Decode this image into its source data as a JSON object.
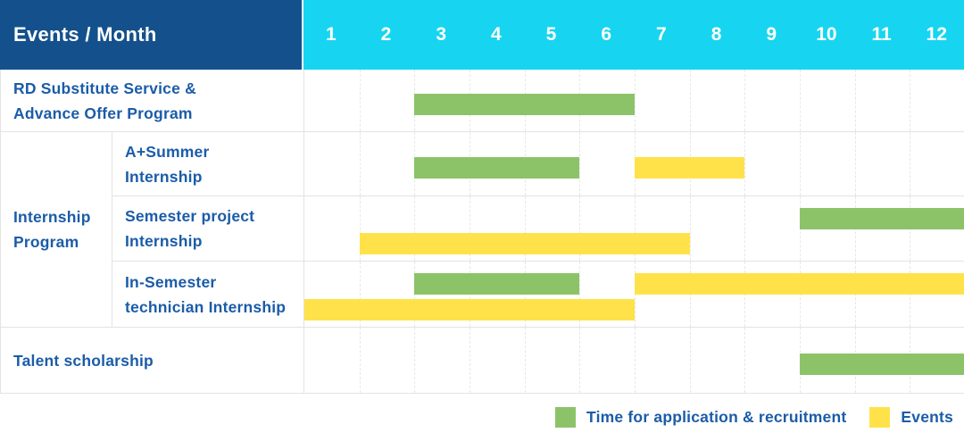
{
  "header": {
    "title": "Events / Month",
    "months": [
      "1",
      "2",
      "3",
      "4",
      "5",
      "6",
      "7",
      "8",
      "9",
      "10",
      "11",
      "12"
    ]
  },
  "legend": [
    {
      "label": "Time for application & recruitment",
      "type": "application"
    },
    {
      "label": "Events",
      "type": "event"
    }
  ],
  "colors": {
    "header_bg": "#14518C",
    "months_bg": "#17D5F0",
    "label_text": "#1B5CA8",
    "green": "#8CC369",
    "yellow": "#FFE249",
    "grid_line": "#E7E7E7",
    "cell_border": "#E3E3E3"
  },
  "chart_data": {
    "type": "gantt",
    "x_axis": {
      "unit": "month",
      "range": [
        1,
        12
      ]
    },
    "bar_types": {
      "application": "Time for application & recruitment",
      "event": "Events"
    },
    "rows": [
      {
        "group": null,
        "label": "RD Substitute Service &\nAdvance Offer Program",
        "lines": [
          [
            {
              "type": "application",
              "start": 3,
              "end": 6
            }
          ]
        ]
      },
      {
        "group": "Internship\nProgram",
        "label": "A+Summer\nInternship",
        "lines": [
          [
            {
              "type": "application",
              "start": 3,
              "end": 5
            },
            {
              "type": "event",
              "start": 7,
              "end": 8
            }
          ]
        ]
      },
      {
        "group": "Internship\nProgram",
        "label": "Semester project\nInternship",
        "lines": [
          [
            {
              "type": "application",
              "start": 10,
              "end": 12
            }
          ],
          [
            {
              "type": "event",
              "start": 2,
              "end": 7
            }
          ]
        ]
      },
      {
        "group": "Internship\nProgram",
        "label": "In-Semester\ntechnician Internship",
        "lines": [
          [
            {
              "type": "application",
              "start": 3,
              "end": 5
            },
            {
              "type": "event",
              "start": 7,
              "end": 12
            }
          ],
          [
            {
              "type": "event",
              "start": 1,
              "end": 6
            }
          ]
        ]
      },
      {
        "group": null,
        "label": "Talent scholarship",
        "lines": [
          [
            {
              "type": "application",
              "start": 10,
              "end": 12
            }
          ]
        ]
      }
    ]
  }
}
